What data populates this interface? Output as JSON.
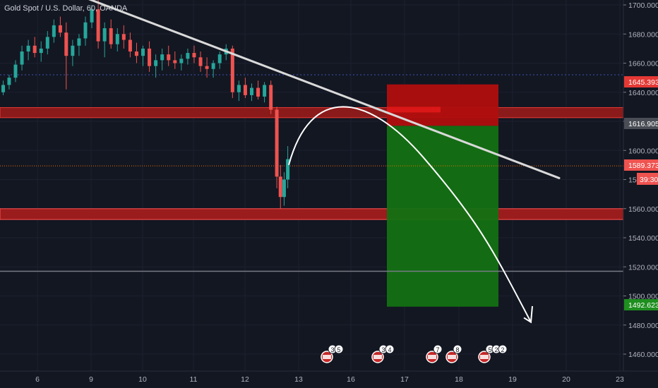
{
  "header": {
    "title": "Gold Spot / U.S. Dollar, 60, OANDA"
  },
  "chart_data": {
    "type": "candlestick",
    "symbol": "Gold Spot / U.S. Dollar",
    "interval": "60",
    "source": "OANDA",
    "y_ticks": [
      "1700.000",
      "1680.000",
      "1660.000",
      "1640.000",
      "1620.000",
      "1600.000",
      "1580.000",
      "1560.000",
      "1540.000",
      "1520.000",
      "1500.000",
      "1480.000",
      "1460.000"
    ],
    "x_ticks": [
      "6",
      "9",
      "10",
      "11",
      "12",
      "13",
      "16",
      "17",
      "18",
      "19",
      "20",
      "23"
    ],
    "ylim": [
      1452,
      1704
    ],
    "price_tags": {
      "stop": "1645.393",
      "entry": "1616.905",
      "current": "1589.373",
      "countdown": "39:30",
      "target": "1492.623"
    },
    "levels": {
      "dotted_blue": 1652,
      "grey_line": 1517
    },
    "resistance_zone": [
      1623.5,
      1628.5
    ],
    "support_zone": [
      1553.5,
      1559
    ],
    "position": {
      "stop": 1645.393,
      "entry": 1616.905,
      "target": 1492.623
    },
    "trendline": [
      {
        "x": 9.1,
        "y": 1704
      },
      {
        "x": 19.9,
        "y": 1581
      }
    ],
    "projection_arc": [
      {
        "x": 12.82,
        "y": 1590
      },
      {
        "x": 13.5,
        "y": 1630
      },
      {
        "x": 16.3,
        "y": 1615
      },
      {
        "x": 19.22,
        "y": 1482
      }
    ],
    "candles_ohlc": [
      [
        5.57,
        1640,
        1648,
        1638,
        1645
      ],
      [
        5.7,
        1645,
        1652,
        1642,
        1650
      ],
      [
        5.84,
        1650,
        1662,
        1647,
        1659
      ],
      [
        5.98,
        1659,
        1672,
        1655,
        1668
      ],
      [
        6.12,
        1668,
        1676,
        1662,
        1672
      ],
      [
        6.26,
        1672,
        1678,
        1664,
        1667
      ],
      [
        6.4,
        1667,
        1675,
        1661,
        1670
      ],
      [
        6.54,
        1670,
        1682,
        1666,
        1678
      ],
      [
        6.68,
        1678,
        1690,
        1674,
        1686
      ],
      [
        6.82,
        1686,
        1692,
        1678,
        1681
      ],
      [
        6.95,
        1681,
        1688,
        1642,
        1665
      ],
      [
        7.09,
        1665,
        1676,
        1658,
        1672
      ],
      [
        7.23,
        1672,
        1680,
        1665,
        1677
      ],
      [
        7.37,
        1677,
        1692,
        1672,
        1688
      ],
      [
        7.51,
        1688,
        1700,
        1684,
        1697
      ],
      [
        7.65,
        1697,
        1706,
        1670,
        1675
      ],
      [
        7.79,
        1675,
        1688,
        1664,
        1684
      ],
      [
        7.93,
        1684,
        1690,
        1670,
        1673
      ],
      [
        8.07,
        1673,
        1684,
        1668,
        1680
      ],
      [
        8.21,
        1680,
        1686,
        1670,
        1676
      ],
      [
        8.35,
        1676,
        1681,
        1664,
        1668
      ],
      [
        8.49,
        1668,
        1674,
        1660,
        1665
      ],
      [
        8.63,
        1665,
        1672,
        1658,
        1670
      ],
      [
        8.77,
        1670,
        1675,
        1654,
        1658
      ],
      [
        8.91,
        1658,
        1666,
        1650,
        1662
      ],
      [
        9.05,
        1662,
        1670,
        1655,
        1666
      ],
      [
        9.19,
        1666,
        1672,
        1658,
        1662
      ],
      [
        9.33,
        1662,
        1668,
        1656,
        1660
      ],
      [
        9.47,
        1660,
        1666,
        1655,
        1663
      ],
      [
        9.61,
        1663,
        1670,
        1659,
        1667
      ],
      [
        9.75,
        1667,
        1672,
        1660,
        1664
      ],
      [
        9.89,
        1664,
        1668,
        1654,
        1658
      ],
      [
        10.03,
        1658,
        1664,
        1650,
        1656
      ],
      [
        10.17,
        1656,
        1662,
        1650,
        1660
      ],
      [
        10.31,
        1660,
        1668,
        1656,
        1666
      ],
      [
        10.45,
        1666,
        1673,
        1662,
        1670
      ],
      [
        10.59,
        1670,
        1672,
        1636,
        1640
      ],
      [
        10.73,
        1640,
        1648,
        1634,
        1645
      ],
      [
        10.87,
        1645,
        1650,
        1636,
        1638
      ],
      [
        11.01,
        1638,
        1646,
        1634,
        1643
      ],
      [
        11.15,
        1643,
        1648,
        1635,
        1637
      ],
      [
        11.29,
        1637,
        1647,
        1633,
        1645
      ],
      [
        11.43,
        1645,
        1648,
        1625,
        1628
      ],
      [
        11.56,
        1628,
        1630,
        1574,
        1582
      ],
      [
        11.64,
        1582,
        1590,
        1560,
        1568
      ],
      [
        11.72,
        1568,
        1585,
        1562,
        1580
      ],
      [
        11.8,
        1580,
        1603,
        1574,
        1594
      ]
    ]
  },
  "events": {
    "group1": [
      "3",
      "5"
    ],
    "group2": [
      "3",
      "4"
    ],
    "group3": [
      "7"
    ],
    "group4": [
      "8"
    ],
    "group5": [
      "5",
      "2",
      "2"
    ]
  },
  "colors": {
    "bg": "#131722",
    "up": "#26a69a",
    "down": "#ef5350",
    "stop_zone": "#b71c1c",
    "target_zone": "#1b7a1b",
    "zone": "#d32f2f"
  }
}
